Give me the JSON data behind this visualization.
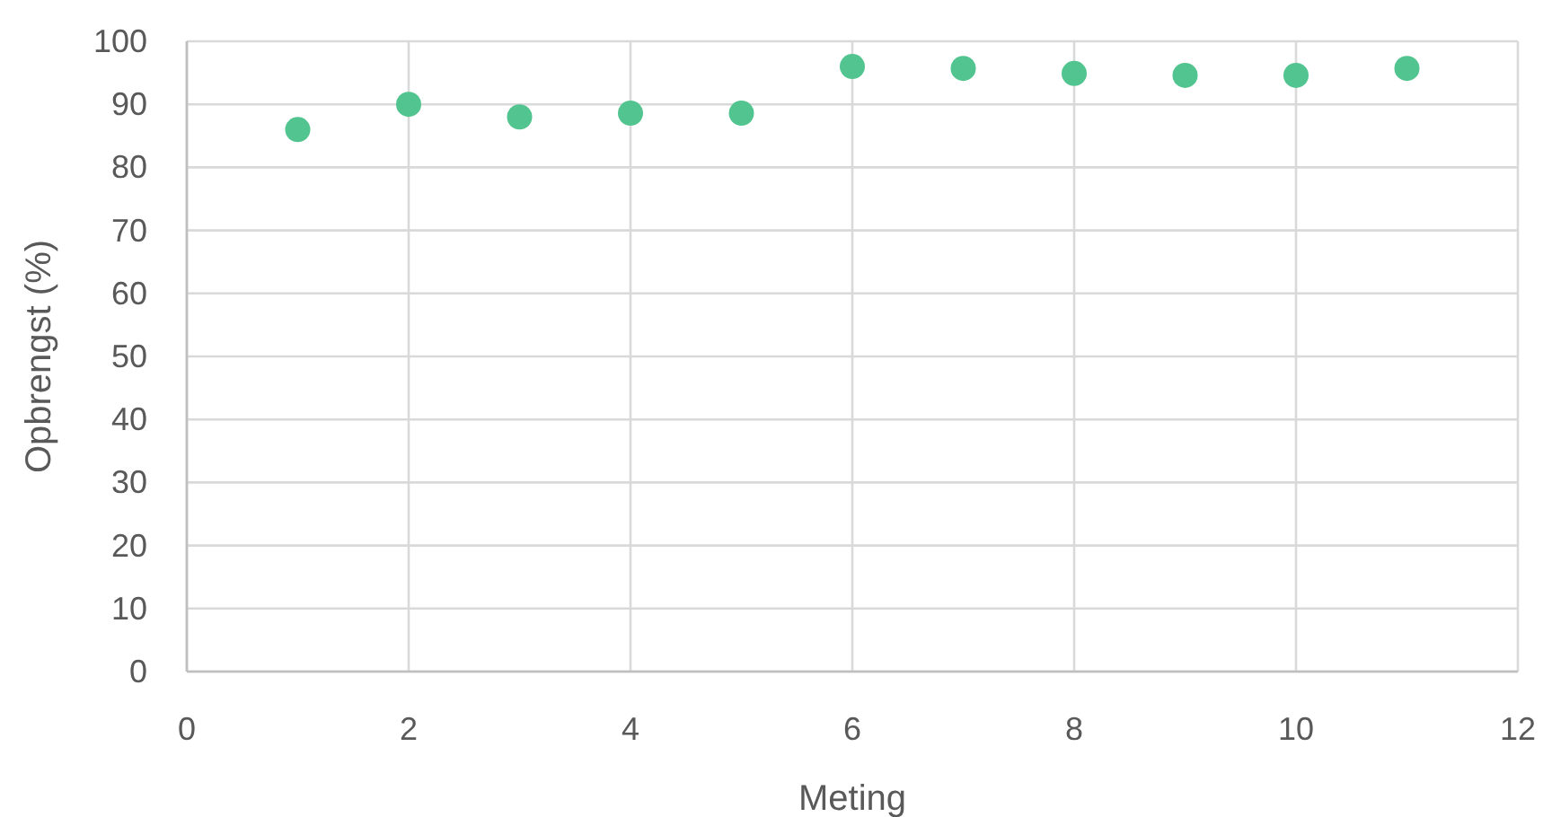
{
  "chart_data": {
    "type": "scatter",
    "xlabel": "Meting",
    "ylabel": "Opbrengst (%)",
    "x": [
      1,
      2,
      3,
      4,
      5,
      6,
      7,
      8,
      9,
      10,
      11
    ],
    "series": [
      {
        "color": "#52c48f",
        "values": [
          86,
          90,
          88,
          88.6,
          88.6,
          96,
          95.7,
          94.9,
          94.6,
          94.6,
          95.7
        ]
      }
    ],
    "xlim": [
      0,
      12
    ],
    "xticks": [
      0,
      2,
      4,
      6,
      8,
      10,
      12
    ],
    "ylim": [
      0,
      100
    ],
    "yticks": [
      0,
      10,
      20,
      30,
      40,
      50,
      60,
      70,
      80,
      90,
      100
    ],
    "grid": true,
    "marker": "circle"
  }
}
